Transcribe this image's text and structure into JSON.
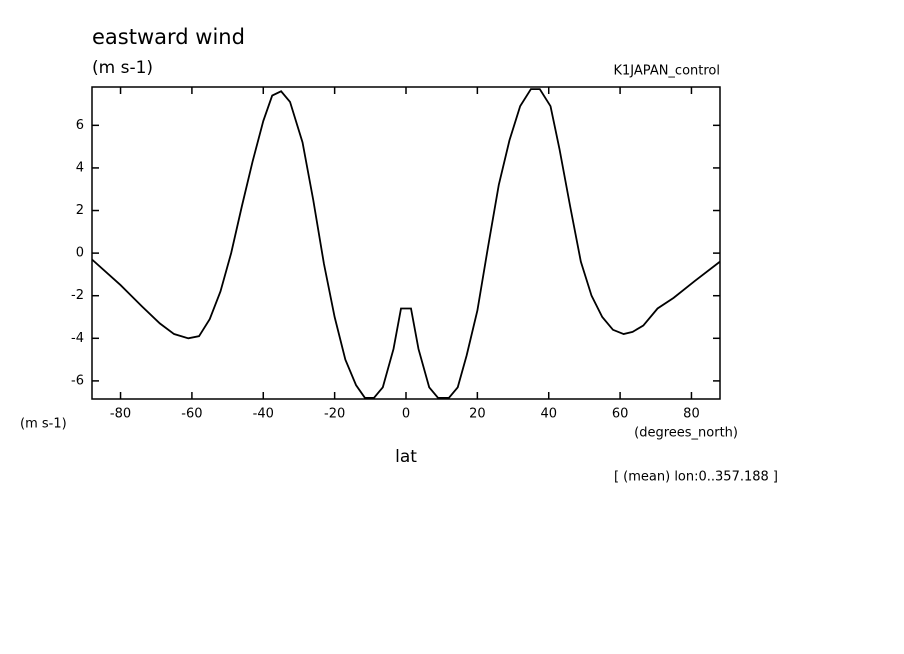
{
  "chart_data": {
    "type": "line",
    "title": "eastward wind",
    "subtitle": "(m s-1)",
    "run_label": "K1JAPAN_control",
    "y_label": "(m s-1)",
    "x_units": "(degrees_north)",
    "x_label": "lat",
    "annotation": "[ (mean) lon:0..357.188 ]",
    "x": [
      -88,
      -80,
      -74,
      -69,
      -65,
      -61,
      -58,
      -55,
      -52,
      -49,
      -46,
      -43,
      -40,
      -37.5,
      -35,
      -32.5,
      -29,
      -26,
      -23,
      -20,
      -17,
      -14,
      -11.5,
      -9,
      -6.5,
      -3.5,
      -1.4,
      1.4,
      3.5,
      6.5,
      9,
      12,
      14.5,
      17,
      20,
      23,
      26,
      29,
      32,
      35,
      37.5,
      40.5,
      43,
      46,
      49,
      52,
      55,
      58,
      61,
      63.5,
      66.5,
      70.5,
      75,
      81,
      88
    ],
    "series": [
      {
        "color": "#000000",
        "values": [
          -0.3,
          -1.5,
          -2.5,
          -3.3,
          -3.8,
          -4.0,
          -3.9,
          -3.1,
          -1.8,
          0,
          2.2,
          4.3,
          6.2,
          7.4,
          7.6,
          7.1,
          5.2,
          2.5,
          -0.5,
          -3.0,
          -5.0,
          -6.2,
          -6.8,
          -6.8,
          -6.3,
          -4.5,
          -2.6,
          -2.6,
          -4.5,
          -6.3,
          -6.8,
          -6.8,
          -6.3,
          -4.8,
          -2.7,
          0.3,
          3.2,
          5.3,
          6.9,
          7.7,
          7.7,
          6.9,
          4.9,
          2.2,
          -0.4,
          -2.0,
          -3.0,
          -3.6,
          -3.8,
          -3.7,
          -3.4,
          -2.6,
          -2.1,
          -1.3,
          -0.4
        ]
      }
    ],
    "xlim": [
      -88,
      88
    ],
    "ylim": [
      -6.85,
      7.8
    ],
    "xticks": [
      -80,
      -60,
      -40,
      -20,
      0,
      20,
      40,
      60,
      80
    ],
    "yticks": [
      -6,
      -4,
      -2,
      0,
      2,
      4,
      6
    ]
  }
}
